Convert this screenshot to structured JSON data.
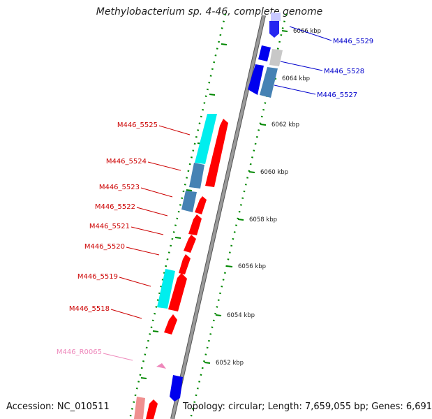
{
  "title": "Methylobacterium sp. 4-46, complete genome",
  "accession_text": "Accession: NC_010511",
  "stats_text": "Topology: circular; Length: 7,659,055 bp; Genes: 6,691",
  "colors": {
    "forward_cds": "#ff0000",
    "reverse_cds": "#0000ee",
    "forward_label": "#cc0000",
    "reverse_label": "#0000cc",
    "rna_label": "#ee88bb",
    "cyan": "#00eeee",
    "steelblue": "#4682b4",
    "grey": "#c8c8c8",
    "pink": "#ee88bb",
    "ticks": "#008800",
    "backbone": "#888888"
  },
  "scale": {
    "ticks": [
      {
        "label": "6066 kbp"
      },
      {
        "label": "6064 kbp"
      },
      {
        "label": "6062 kbp"
      },
      {
        "label": "6060 kbp"
      },
      {
        "label": "6058 kbp"
      },
      {
        "label": "6056 kbp"
      },
      {
        "label": "6054 kbp"
      },
      {
        "label": "6052 kbp"
      }
    ]
  },
  "gene_labels": [
    {
      "text": "M446_5529",
      "strand": "reverse"
    },
    {
      "text": "M446_5528",
      "strand": "reverse"
    },
    {
      "text": "M446_5527",
      "strand": "reverse"
    },
    {
      "text": "M446_5525",
      "strand": "forward"
    },
    {
      "text": "M446_5524",
      "strand": "forward"
    },
    {
      "text": "M446_5523",
      "strand": "forward"
    },
    {
      "text": "M446_5522",
      "strand": "forward"
    },
    {
      "text": "M446_5521",
      "strand": "forward"
    },
    {
      "text": "M446_5520",
      "strand": "forward"
    },
    {
      "text": "M446_5519",
      "strand": "forward"
    },
    {
      "text": "M446_5518",
      "strand": "forward"
    },
    {
      "text": "M446_R0065",
      "strand": "rna"
    }
  ]
}
